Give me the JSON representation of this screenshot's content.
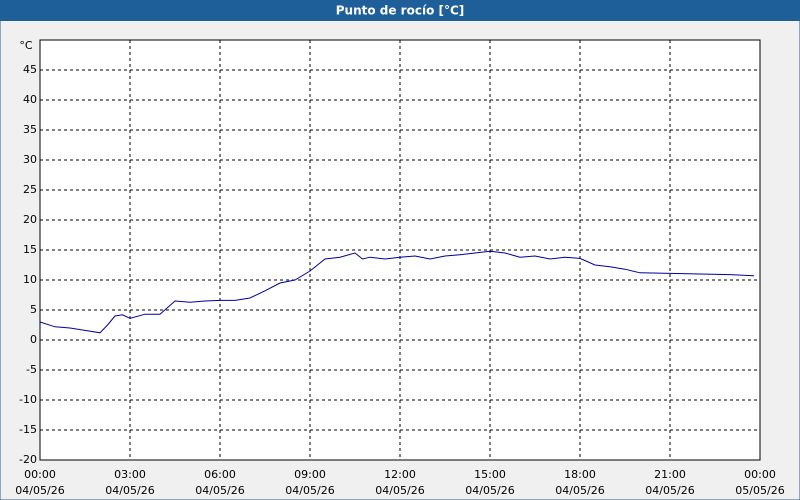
{
  "chart_data": {
    "type": "line",
    "title": "Punto de rocío [°C]",
    "y_label": "°C",
    "x": [
      0,
      0.5,
      1,
      1.5,
      2,
      2.25,
      2.5,
      2.75,
      3,
      3.5,
      4,
      4.5,
      5,
      5.5,
      6,
      6.5,
      7,
      7.5,
      8,
      8.5,
      9,
      9.5,
      10,
      10.5,
      10.75,
      11,
      11.5,
      12,
      12.5,
      13,
      13.5,
      14,
      14.5,
      15,
      15.5,
      16,
      16.5,
      17,
      17.5,
      18,
      18.5,
      19,
      19.5,
      20,
      21,
      22,
      23,
      23.8
    ],
    "series": [
      {
        "name": "Punto de rocío",
        "color": "#0000a0",
        "values": [
          3,
          2.2,
          2,
          1.6,
          1.2,
          2.5,
          4,
          4.2,
          3.6,
          4.3,
          4.3,
          6.5,
          6.3,
          6.5,
          6.6,
          6.6,
          7,
          8.2,
          9.5,
          10,
          11.5,
          13.5,
          13.8,
          14.5,
          13.5,
          13.8,
          13.5,
          13.8,
          14,
          13.5,
          14,
          14.2,
          14.5,
          14.8,
          14.5,
          13.8,
          14,
          13.5,
          13.8,
          13.6,
          12.5,
          12.2,
          11.8,
          11.2,
          11.1,
          11,
          10.9,
          10.7
        ]
      }
    ],
    "xlim": [
      0,
      24
    ],
    "xticks": [
      {
        "value": 0,
        "label": "00:00"
      },
      {
        "value": 3,
        "label": "03:00"
      },
      {
        "value": 6,
        "label": "06:00"
      },
      {
        "value": 9,
        "label": "09:00"
      },
      {
        "value": 12,
        "label": "12:00"
      },
      {
        "value": 15,
        "label": "15:00"
      },
      {
        "value": 18,
        "label": "18:00"
      },
      {
        "value": 21,
        "label": "21:00"
      },
      {
        "value": 24,
        "label": "00:00"
      }
    ],
    "xtick_dates": [
      "04/05/26",
      "04/05/26",
      "04/05/26",
      "04/05/26",
      "04/05/26",
      "04/05/26",
      "04/05/26",
      "04/05/26",
      "05/05/26"
    ],
    "ylim": [
      -20,
      50
    ],
    "yticks": [
      -20,
      -15,
      -10,
      -5,
      0,
      5,
      10,
      15,
      20,
      25,
      30,
      35,
      40,
      45
    ],
    "grid": true
  }
}
